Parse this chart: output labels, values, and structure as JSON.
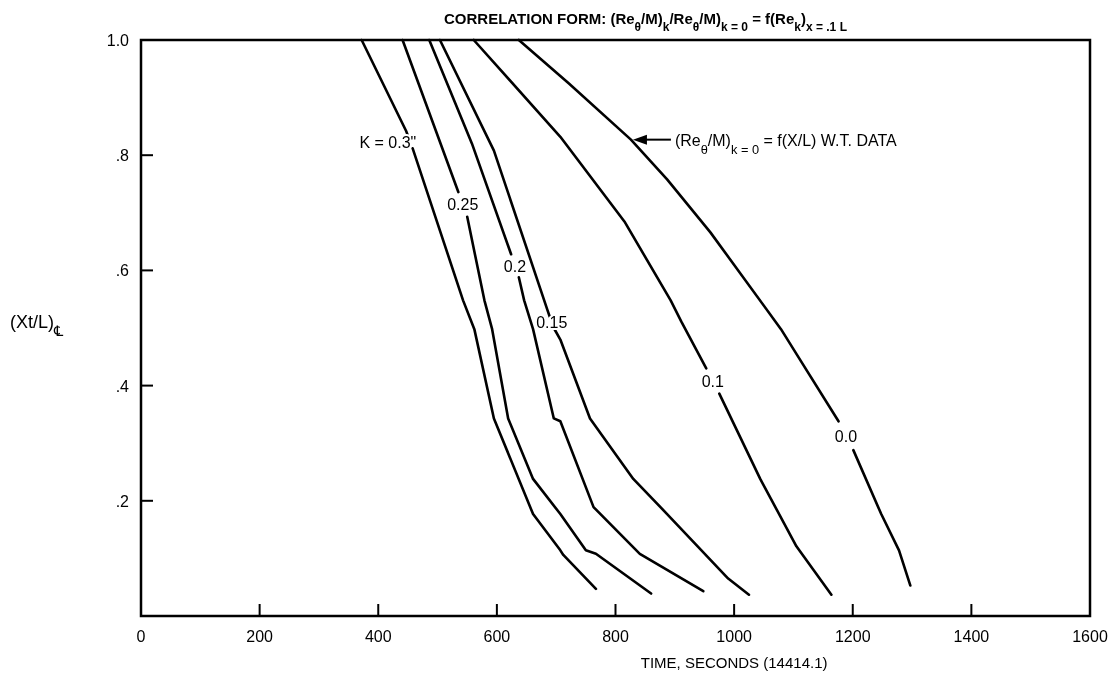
{
  "chart_data": {
    "type": "line",
    "title": "CORRELATION FORM: (Re$_{θ}$/M)$_{k}$/Re$_{θ}$/M)$_{k = 0}$ = f(Re$_{k}$)$_{x = .1 L}$",
    "xlabel": "TIME, SECONDS (14414.1)",
    "ylabel": "(Xt/L)$_{℄}$",
    "xlim": [
      0,
      1600
    ],
    "ylim": [
      0,
      1
    ],
    "xticks": [
      0,
      200,
      400,
      600,
      800,
      1000,
      1200,
      1400,
      1600
    ],
    "yticks": [
      {
        "value": 0.2,
        "label": ".2"
      },
      {
        "value": 0.4,
        "label": ".4"
      },
      {
        "value": 0.6,
        "label": ".6"
      },
      {
        "value": 0.8,
        "label": ".8"
      },
      {
        "value": 1,
        "label": "1.0"
      }
    ],
    "grid": false,
    "legend": false,
    "marker": "none",
    "line_style": "solid",
    "annotations": [
      {
        "text": "(Re$_{θ}$/M)$_{k = 0}$ = f(X/L) W.T. DATA",
        "x": 826,
        "y": 0.827
      }
    ],
    "series": [
      {
        "name": "K = 0.3\"",
        "color": "#000000",
        "x": [
          372,
          447,
          450,
          454,
          458,
          543,
          562,
          595,
          661,
          707,
          712,
          767
        ],
        "values": [
          1.0,
          0.842,
          0.834,
          null,
          0.812,
          0.548,
          0.498,
          0.343,
          0.177,
          0.114,
          0.106,
          0.047
        ]
      },
      {
        "name": "0.25",
        "color": "#000000",
        "x": [
          441,
          535,
          542,
          550,
          579,
          592,
          619,
          661,
          707,
          750,
          767,
          860
        ],
        "values": [
          1.0,
          0.736,
          null,
          0.693,
          0.548,
          0.498,
          0.343,
          0.238,
          0.177,
          0.114,
          0.108,
          0.039
        ]
      },
      {
        "name": "0.2",
        "color": "#000000",
        "x": [
          486,
          558,
          624,
          630,
          637,
          646,
          661,
          696,
          707,
          763,
          841,
          948
        ],
        "values": [
          1.0,
          0.82,
          0.628,
          null,
          0.588,
          0.548,
          0.498,
          0.343,
          0.338,
          0.189,
          0.108,
          0.043
        ]
      },
      {
        "name": "0.15",
        "color": "#000000",
        "x": [
          504,
          595,
          685,
          689,
          692,
          696,
          707,
          757,
          830,
          887,
          990,
          1025
        ],
        "values": [
          1.0,
          0.808,
          0.532,
          0.52,
          null,
          0.5,
          0.48,
          0.343,
          0.238,
          0.177,
          0.065,
          0.037
        ]
      },
      {
        "name": "0.1",
        "color": "#000000",
        "x": [
          561,
          707,
          815,
          893,
          911,
          953,
          964,
          975,
          1044,
          1105,
          1164
        ],
        "values": [
          1.0,
          0.832,
          0.685,
          0.548,
          0.511,
          0.43,
          null,
          0.386,
          0.238,
          0.121,
          0.037
        ]
      },
      {
        "name": "0.0",
        "color": "#000000",
        "x": [
          637,
          721,
          826,
          887,
          960,
          1079,
          1105,
          1176,
          1188,
          1201,
          1248,
          1278,
          1297
        ],
        "values": [
          1.0,
          0.925,
          0.827,
          0.758,
          0.666,
          0.498,
          0.455,
          0.338,
          null,
          0.288,
          0.177,
          0.114,
          0.053
        ]
      }
    ]
  }
}
